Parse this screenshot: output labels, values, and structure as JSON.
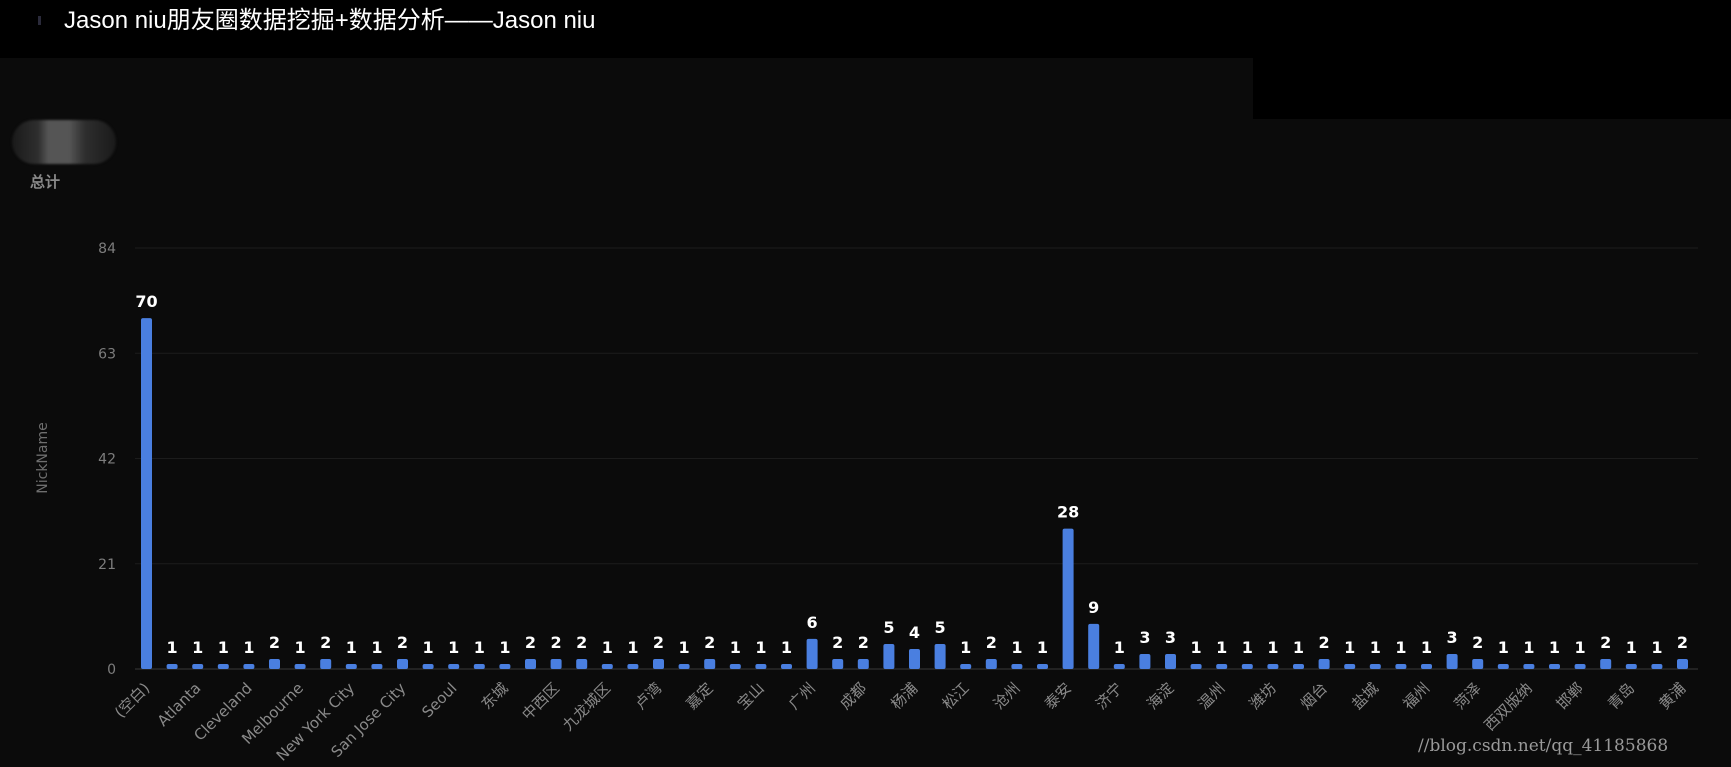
{
  "header": {
    "title": "Jason niu朋友圈数据挖掘+数据分析——Jason niu"
  },
  "avatar": {
    "label": "总计"
  },
  "watermark": "//blog.csdn.net/qq_41185868",
  "colors": {
    "bar": "#4a7fe0",
    "background": "#0b0b0b",
    "header_bg": "#000000",
    "grid": "#1c1c1c"
  },
  "chart_data": {
    "type": "bar",
    "ylabel": "NickName",
    "ylim": [
      0,
      84
    ],
    "yticks": [
      0,
      21,
      42,
      63,
      84
    ],
    "grid": true,
    "values": [
      70,
      1,
      1,
      1,
      1,
      2,
      1,
      2,
      1,
      1,
      2,
      1,
      1,
      1,
      1,
      2,
      2,
      2,
      1,
      1,
      2,
      1,
      2,
      1,
      1,
      1,
      6,
      2,
      2,
      5,
      4,
      5,
      1,
      2,
      1,
      1,
      28,
      9,
      1,
      3,
      3,
      1,
      1,
      1,
      1,
      1,
      2,
      1,
      1,
      1,
      1,
      3,
      2,
      1,
      1,
      1,
      1,
      2,
      1,
      1,
      2
    ],
    "visible_tick_labels": [
      {
        "index": 0,
        "label": "(空白)"
      },
      {
        "index": 2,
        "label": "Atlanta"
      },
      {
        "index": 4,
        "label": "Cleveland"
      },
      {
        "index": 6,
        "label": "Melbourne"
      },
      {
        "index": 8,
        "label": "New York City"
      },
      {
        "index": 10,
        "label": "San Jose City"
      },
      {
        "index": 12,
        "label": "Seoul"
      },
      {
        "index": 14,
        "label": "东城"
      },
      {
        "index": 16,
        "label": "中西区"
      },
      {
        "index": 18,
        "label": "九龙城区"
      },
      {
        "index": 20,
        "label": "卢湾"
      },
      {
        "index": 22,
        "label": "嘉定"
      },
      {
        "index": 24,
        "label": "宝山"
      },
      {
        "index": 26,
        "label": "广州"
      },
      {
        "index": 28,
        "label": "成都"
      },
      {
        "index": 30,
        "label": "杨浦"
      },
      {
        "index": 32,
        "label": "松江"
      },
      {
        "index": 34,
        "label": "沧州"
      },
      {
        "index": 36,
        "label": "泰安"
      },
      {
        "index": 38,
        "label": "济宁"
      },
      {
        "index": 40,
        "label": "海淀"
      },
      {
        "index": 42,
        "label": "温州"
      },
      {
        "index": 44,
        "label": "潍坊"
      },
      {
        "index": 46,
        "label": "烟台"
      },
      {
        "index": 48,
        "label": "盐城"
      },
      {
        "index": 50,
        "label": "福州"
      },
      {
        "index": 52,
        "label": "菏泽"
      },
      {
        "index": 54,
        "label": "西双版纳"
      },
      {
        "index": 56,
        "label": "邯郸"
      },
      {
        "index": 58,
        "label": "青岛"
      },
      {
        "index": 60,
        "label": "黄浦"
      }
    ]
  }
}
